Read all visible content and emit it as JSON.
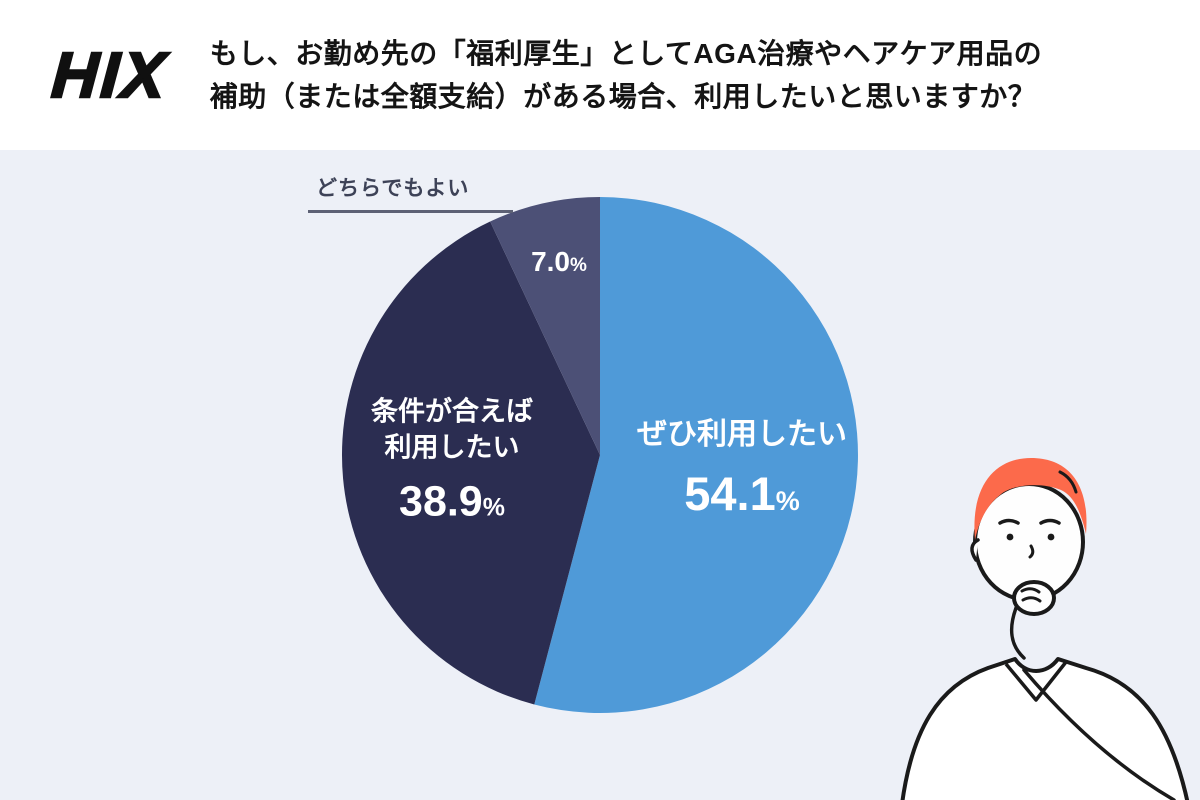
{
  "header": {
    "logo_text": "HIX",
    "question_lines": [
      "もし、お勤め先の「福利厚生」としてAGA治療やヘアケア用品の",
      "補助（または全額支給）がある場合、利用したいと思いますか？"
    ]
  },
  "chart_data": {
    "type": "pie",
    "title": "もし、お勤め先の「福利厚生」としてAGA治療やヘアケア用品の補助（または全額支給）がある場合、利用したいと思いますか？",
    "unit": "%",
    "direction": "clockwise",
    "start_angle_deg": 0,
    "legend_position": "none",
    "background_color": "#edf0f7",
    "slices": [
      {
        "id": "yes",
        "label": "ぜひ利用したい",
        "label_lines": [
          "ぜひ利用したい"
        ],
        "value": 54.1,
        "value_text": "54.1",
        "color": "#4f9ad8",
        "label_color": "#ffffff"
      },
      {
        "id": "conditional",
        "label": "条件が合えば利用したい",
        "label_lines": [
          "条件が合えば",
          "利用したい"
        ],
        "value": 38.9,
        "value_text": "38.9",
        "color": "#2b2d51",
        "label_color": "#ffffff"
      },
      {
        "id": "neutral",
        "label": "どちらでもよい",
        "label_lines": [
          "どちらでもよい"
        ],
        "value": 7.0,
        "value_text": "7.0",
        "color": "#4c5076",
        "label_color": "#ffffff"
      }
    ]
  },
  "illustration": {
    "name": "thinking-man",
    "hair_color": "#fc6a4b",
    "line_color": "#1a1a1a"
  }
}
